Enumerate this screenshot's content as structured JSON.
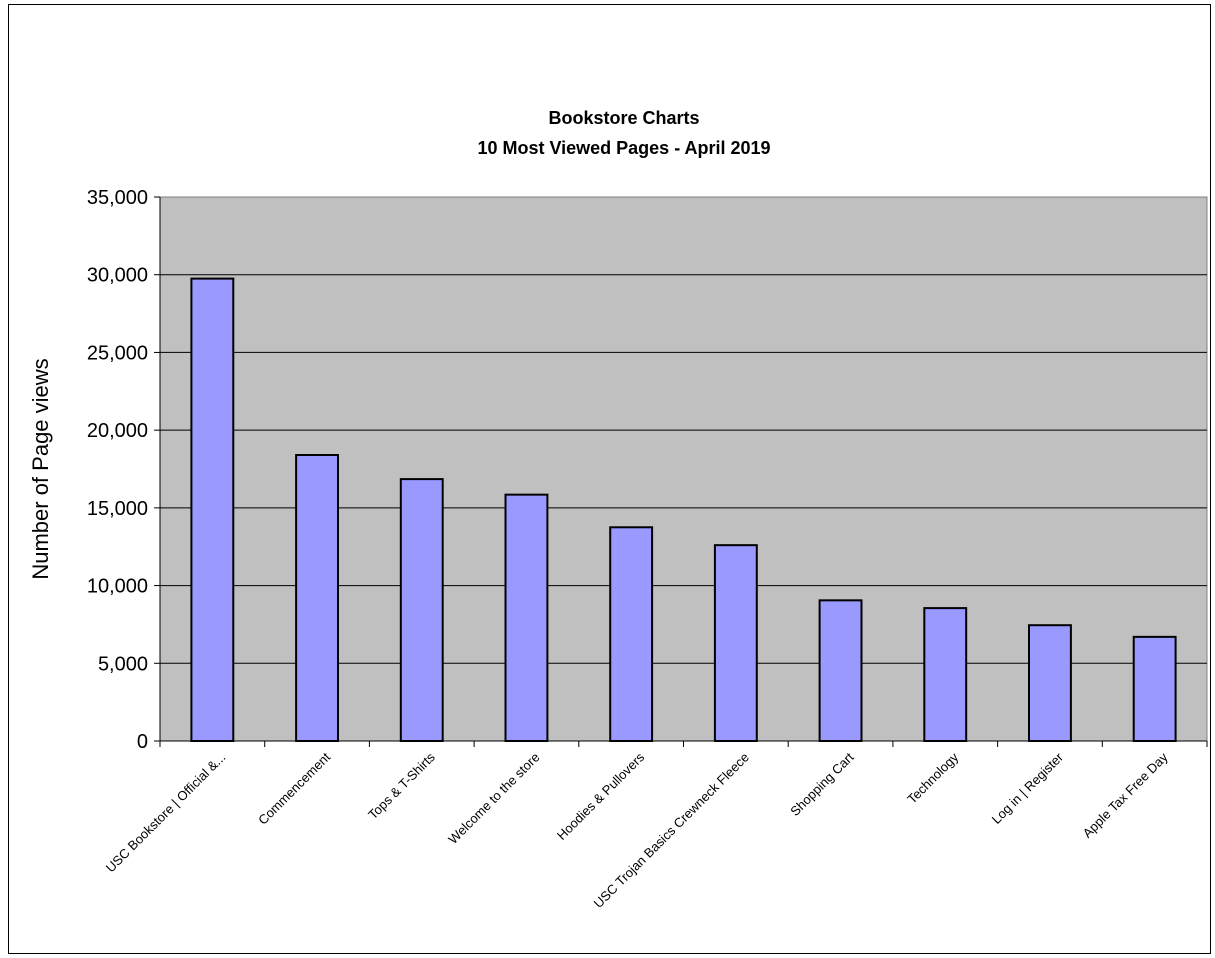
{
  "chart_data": {
    "type": "bar",
    "title": "Bookstore Charts",
    "subtitle": "10 Most Viewed Pages - April 2019",
    "xlabel": "",
    "ylabel": "Number of Page views",
    "ylim": [
      0,
      35000
    ],
    "yticks": [
      0,
      5000,
      10000,
      15000,
      20000,
      25000,
      30000,
      35000
    ],
    "ytick_labels": [
      "0",
      "5,000",
      "10,000",
      "15,000",
      "20,000",
      "25,000",
      "30,000",
      "35,000"
    ],
    "categories": [
      "USC Bookstore | Official &...",
      "Commencement",
      "Tops & T-Shirts",
      "Welcome to the store",
      "Hoodies & Pullovers",
      "USC Trojan Basics Crewneck Fleece",
      "Shopping Cart",
      "Technology",
      "Log in | Register",
      "Apple Tax Free Day"
    ],
    "values": [
      29750,
      18400,
      16850,
      15850,
      13750,
      12600,
      9050,
      8550,
      7450,
      6700
    ],
    "grid": true,
    "legend": "none",
    "colors": {
      "bar": "#9999ff",
      "bar_outline": "#000000",
      "plot_background": "#c0c0c0",
      "gridline": "#000000"
    }
  }
}
